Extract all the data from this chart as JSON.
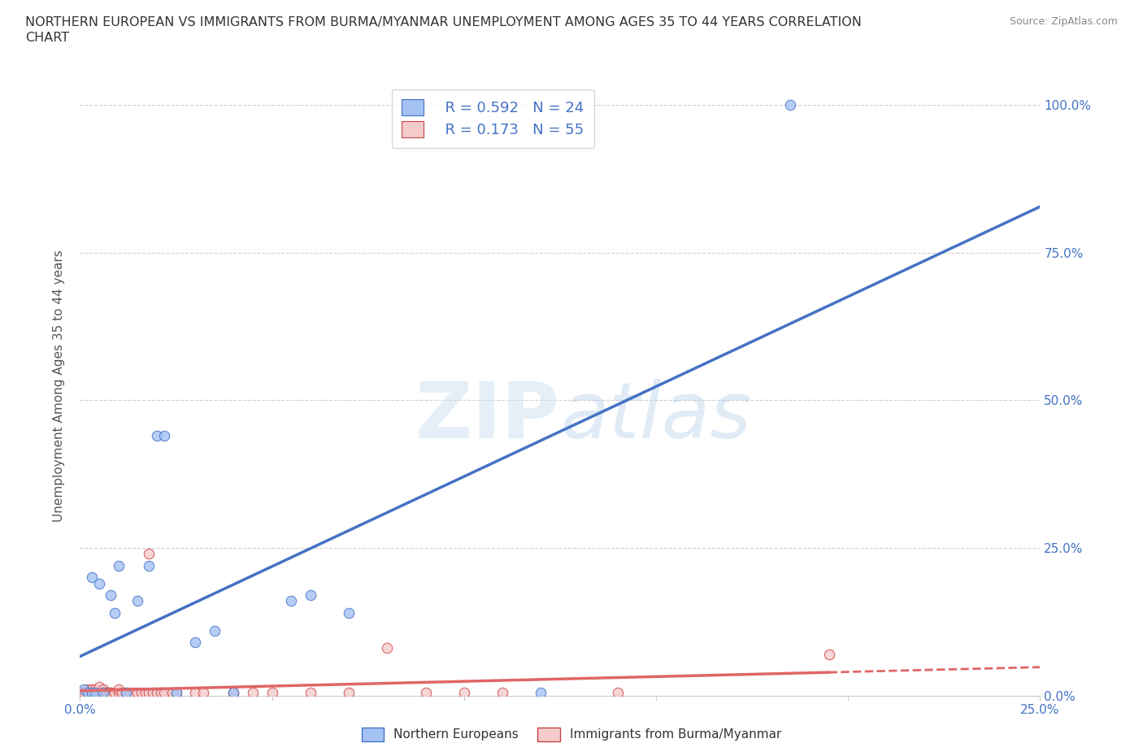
{
  "title_line1": "NORTHERN EUROPEAN VS IMMIGRANTS FROM BURMA/MYANMAR UNEMPLOYMENT AMONG AGES 35 TO 44 YEARS CORRELATION",
  "title_line2": "CHART",
  "source": "Source: ZipAtlas.com",
  "ylabel": "Unemployment Among Ages 35 to 44 years",
  "xlim": [
    0.0,
    0.25
  ],
  "ylim": [
    0.0,
    1.05
  ],
  "xticks": [
    0.0,
    0.05,
    0.1,
    0.15,
    0.2,
    0.25
  ],
  "xticklabels": [
    "0.0%",
    "",
    "",
    "",
    "",
    "25.0%"
  ],
  "yticks": [
    0.0,
    0.25,
    0.5,
    0.75,
    1.0
  ],
  "yticklabels_right": [
    "0.0%",
    "25.0%",
    "50.0%",
    "75.0%",
    "100.0%"
  ],
  "blue_fill": "#a4c2f4",
  "blue_edge": "#4472c4",
  "pink_fill": "#f4cccc",
  "pink_edge": "#cc4444",
  "blue_line_color": "#4472c4",
  "pink_line_color": "#e06666",
  "blue_R": 0.592,
  "blue_N": 24,
  "pink_R": 0.173,
  "pink_N": 55,
  "watermark_zip": "ZIP",
  "watermark_atlas": "atlas",
  "background_color": "#ffffff",
  "grid_color": "#cccccc",
  "tick_color": "#4472c4",
  "blue_scatter_x": [
    0.001,
    0.002,
    0.003,
    0.003,
    0.004,
    0.005,
    0.006,
    0.008,
    0.009,
    0.01,
    0.012,
    0.015,
    0.018,
    0.02,
    0.022,
    0.025,
    0.03,
    0.035,
    0.04,
    0.055,
    0.06,
    0.07,
    0.12,
    0.185
  ],
  "blue_scatter_y": [
    0.01,
    0.005,
    0.005,
    0.2,
    0.005,
    0.19,
    0.005,
    0.17,
    0.14,
    0.22,
    0.005,
    0.16,
    0.22,
    0.44,
    0.44,
    0.005,
    0.09,
    0.11,
    0.005,
    0.16,
    0.17,
    0.14,
    0.005,
    1.0
  ],
  "pink_scatter_x": [
    0.0,
    0.001,
    0.001,
    0.002,
    0.002,
    0.003,
    0.003,
    0.003,
    0.003,
    0.004,
    0.004,
    0.005,
    0.005,
    0.005,
    0.006,
    0.006,
    0.006,
    0.007,
    0.007,
    0.007,
    0.008,
    0.008,
    0.008,
    0.009,
    0.009,
    0.01,
    0.01,
    0.011,
    0.012,
    0.013,
    0.014,
    0.015,
    0.016,
    0.017,
    0.018,
    0.018,
    0.019,
    0.02,
    0.021,
    0.022,
    0.024,
    0.025,
    0.03,
    0.032,
    0.04,
    0.045,
    0.05,
    0.06,
    0.07,
    0.08,
    0.09,
    0.1,
    0.11,
    0.14,
    0.195
  ],
  "pink_scatter_y": [
    0.005,
    0.005,
    0.005,
    0.01,
    0.005,
    0.0,
    0.005,
    0.005,
    0.01,
    0.005,
    0.01,
    0.0,
    0.005,
    0.015,
    0.005,
    0.01,
    0.005,
    0.005,
    0.005,
    0.005,
    0.005,
    0.005,
    0.0,
    0.005,
    0.005,
    0.005,
    0.01,
    0.005,
    0.005,
    0.005,
    0.005,
    0.005,
    0.005,
    0.005,
    0.005,
    0.24,
    0.005,
    0.005,
    0.005,
    0.005,
    0.005,
    0.005,
    0.005,
    0.005,
    0.005,
    0.005,
    0.005,
    0.005,
    0.005,
    0.08,
    0.005,
    0.005,
    0.005,
    0.005,
    0.07
  ]
}
